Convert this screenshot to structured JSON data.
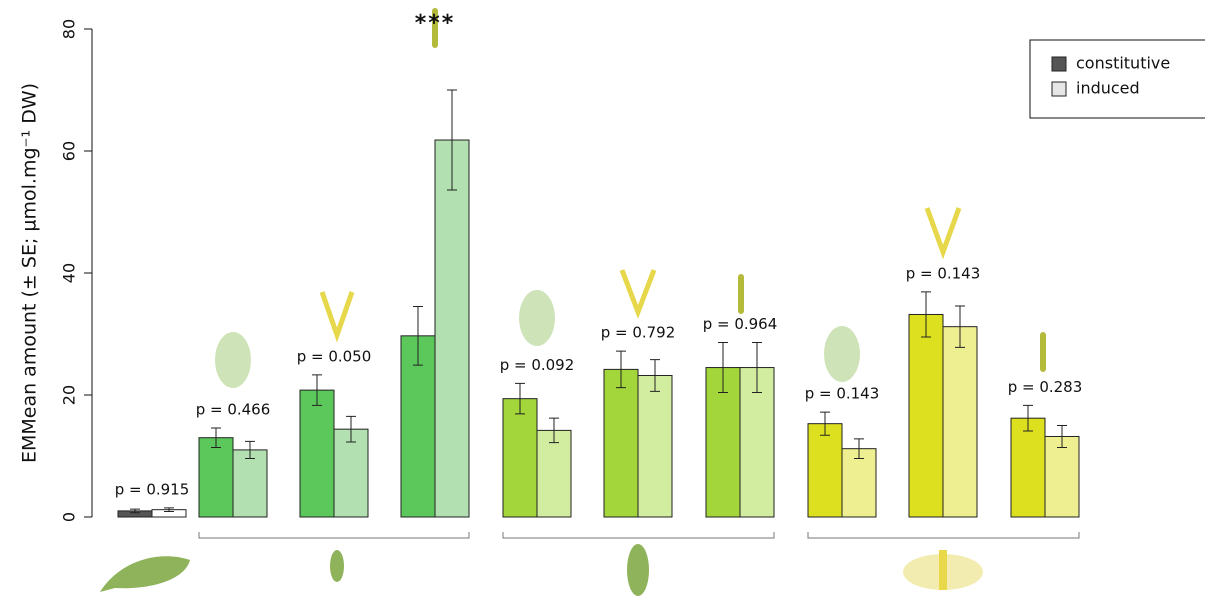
{
  "chart_data": {
    "type": "bar",
    "ylabel": "EMMean amount (± SE; µmol.mg⁻¹ DW)",
    "categories": [
      null,
      null,
      null,
      null,
      null,
      null,
      null,
      null,
      null,
      null
    ],
    "series": [
      {
        "name": "constitutive",
        "color": "#555555",
        "colors": [
          "#555555",
          "#5cc85c",
          "#5cc85c",
          "#5cc85c",
          "#a3d63a",
          "#a3d63a",
          "#a3d63a",
          "#dde01e",
          "#dde01e",
          "#dde01e"
        ],
        "values": [
          1.0,
          13.0,
          20.8,
          29.7,
          19.4,
          24.2,
          24.5,
          15.3,
          33.2,
          16.2
        ],
        "errors": [
          0.3,
          1.6,
          2.5,
          4.8,
          2.5,
          3.0,
          4.1,
          1.9,
          3.7,
          2.1
        ]
      },
      {
        "name": "induced",
        "color": "#e6e6e6",
        "colors": [
          "#ffffff",
          "#b3e0b0",
          "#b3e0b0",
          "#b3e0b0",
          "#d2eca0",
          "#d2eca0",
          "#d2eca0",
          "#eeef90",
          "#eeef90",
          "#eeef90"
        ],
        "values": [
          1.2,
          11.0,
          14.4,
          61.8,
          14.2,
          23.2,
          24.5,
          11.2,
          31.2,
          13.2
        ],
        "errors": [
          0.3,
          1.4,
          2.1,
          8.2,
          2.0,
          2.6,
          4.1,
          1.6,
          3.4,
          1.8
        ]
      }
    ],
    "annotations": [
      "p = 0.915",
      "p = 0.466",
      "p = 0.050",
      "***",
      "p = 0.092",
      "p = 0.792",
      "p = 0.964",
      "p = 0.143",
      "p = 0.143",
      "p = 0.283"
    ],
    "ylim": [
      0,
      80
    ],
    "yticks": [
      0,
      20,
      40,
      60,
      80
    ],
    "legend": "top-right"
  }
}
